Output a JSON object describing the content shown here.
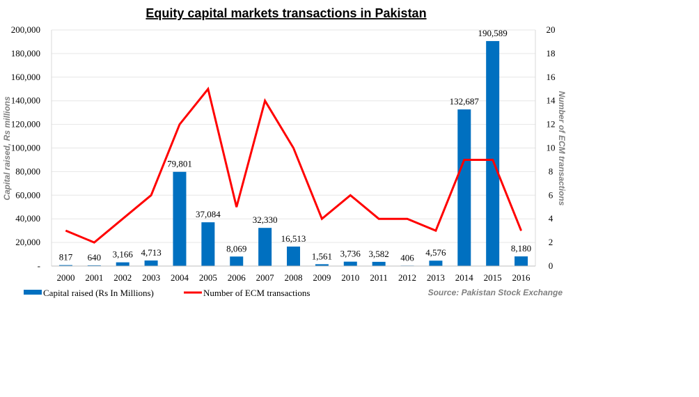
{
  "chart_data": {
    "type": "bar",
    "title": "Equity capital markets transactions in Pakistan",
    "categories": [
      "2000",
      "2001",
      "2002",
      "2003",
      "2004",
      "2005",
      "2006",
      "2007",
      "2008",
      "2009",
      "2010",
      "2011",
      "2012",
      "2013",
      "2014",
      "2015",
      "2016"
    ],
    "series": [
      {
        "name": "Capital raised (Rs In Millions)",
        "type": "bar",
        "axis": "left",
        "color": "#0070c0",
        "values": [
          817,
          640,
          3166,
          4713,
          79801,
          37084,
          8069,
          32330,
          16513,
          1561,
          3736,
          3582,
          406,
          4576,
          132687,
          190589,
          8180
        ],
        "labels": [
          "817",
          "640",
          "3,166",
          "4,713",
          "79,801",
          "37,084",
          "8,069",
          "32,330",
          "16,513",
          "1,561",
          "3,736",
          "3,582",
          "406",
          "4,576",
          "132,687",
          "190,589",
          "8,180"
        ]
      },
      {
        "name": "Number of ECM transactions",
        "type": "line",
        "axis": "right",
        "color": "#ff0000",
        "values": [
          3,
          2,
          4,
          6,
          12,
          15,
          5,
          14,
          10,
          4,
          6,
          4,
          4,
          3,
          9,
          9,
          3
        ]
      }
    ],
    "ylabel": "Capital raised, Rs millions",
    "y2label": "Number of ECM transactions",
    "ylim": [
      0,
      200000
    ],
    "y2lim": [
      0,
      20
    ],
    "yticks": [
      "-",
      "20,000",
      "40,000",
      "60,000",
      "80,000",
      "100,000",
      "120,000",
      "140,000",
      "160,000",
      "180,000",
      "200,000"
    ],
    "y2ticks": [
      "0",
      "2",
      "4",
      "6",
      "8",
      "10",
      "12",
      "14",
      "16",
      "18",
      "20"
    ],
    "grid": true,
    "legend": "bottom-left",
    "source": "Source: Pakistan Stock Exchange"
  }
}
